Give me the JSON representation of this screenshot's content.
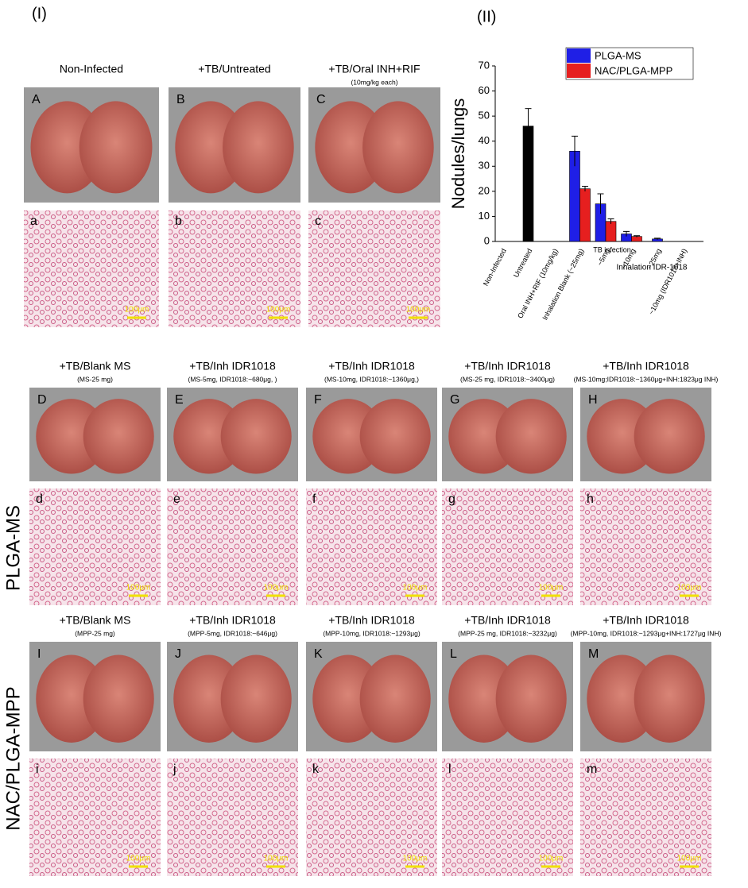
{
  "section_labels": [
    "(I)",
    "(II)"
  ],
  "scale_bar": "100μm",
  "top_row": {
    "panels": [
      {
        "title": "Non-Infected",
        "photo_label": "A",
        "histology_label": "a"
      },
      {
        "title": "+TB/Untreated",
        "photo_label": "B",
        "histology_label": "b"
      },
      {
        "title": "+TB/Oral INH+RIF",
        "subtitle": "(10mg/kg each)",
        "photo_label": "C",
        "histology_label": "c"
      }
    ]
  },
  "rows": [
    {
      "row_label": "PLGA-MS",
      "panels": [
        {
          "title": "+TB/Blank MS",
          "subtitle": "(MS-25 mg)",
          "photo_label": "D",
          "histology_label": "d"
        },
        {
          "title": "+TB/Inh IDR1018",
          "subtitle": "(MS-5mg, IDR1018:~680μg, )",
          "photo_label": "E",
          "histology_label": "e"
        },
        {
          "title": "+TB/Inh IDR1018",
          "subtitle": "(MS-10mg, IDR1018:~1360μg,)",
          "photo_label": "F",
          "histology_label": "f"
        },
        {
          "title": "+TB/Inh IDR1018",
          "subtitle": "(MS-25 mg, IDR1018:~3400μg)",
          "photo_label": "G",
          "histology_label": "g"
        },
        {
          "title": "+TB/Inh IDR1018",
          "subtitle": "(MS-10mg;IDR1018:~1360μg+INH:1823μg INH)",
          "photo_label": "H",
          "histology_label": "h"
        }
      ]
    },
    {
      "row_label": "NAC/PLGA-MPP",
      "panels": [
        {
          "title": "+TB/Blank MS",
          "subtitle": "(MPP-25 mg)",
          "photo_label": "I",
          "histology_label": "i"
        },
        {
          "title": "+TB/Inh IDR1018",
          "subtitle": "(MPP-5mg, IDR1018:~646μg)",
          "photo_label": "J",
          "histology_label": "j"
        },
        {
          "title": "+TB/Inh IDR1018",
          "subtitle": "(MPP-10mg, IDR1018:~1293μg)",
          "photo_label": "K",
          "histology_label": "k"
        },
        {
          "title": "+TB/Inh IDR1018",
          "subtitle": "(MPP-25 mg, IDR1018:~3232μg)",
          "photo_label": "L",
          "histology_label": "l"
        },
        {
          "title": "+TB/Inh IDR1018",
          "subtitle": "(MPP-10mg, IDR1018:~1293μg+INH:1727μg INH)",
          "photo_label": "M",
          "histology_label": "m"
        }
      ]
    }
  ],
  "chart_data": {
    "type": "bar",
    "y_label": "Nodules/lungs",
    "categories": [
      "Non-Infected",
      "Untreated",
      "Oral INH+RIF (10mg/kg)",
      "Inhalation Blank (~25mg)",
      "~5mg",
      "~10mg",
      "~25mg",
      "~10mg (IDR1018+INH)"
    ],
    "annotations": [
      "TB infection",
      "Inhalation IDR-1018"
    ],
    "series": [
      {
        "color": "#000000",
        "values": [
          null,
          46,
          null,
          null,
          null,
          null,
          null,
          null
        ],
        "errors": [
          null,
          7,
          null,
          null,
          null,
          null,
          null,
          null
        ]
      },
      {
        "name": "PLGA-MS",
        "color": "#1f1fe6",
        "values": [
          null,
          null,
          null,
          36,
          15,
          3,
          1,
          null
        ],
        "errors": [
          null,
          null,
          null,
          6,
          4,
          1,
          0.3,
          null
        ]
      },
      {
        "name": "NAC/PLGA-MPP",
        "color": "#e61f1f",
        "values": [
          null,
          null,
          null,
          21,
          8,
          2,
          null,
          null
        ],
        "errors": [
          null,
          null,
          null,
          1,
          1,
          0.3,
          null,
          null
        ]
      }
    ],
    "ylim": [
      0,
      70
    ],
    "yticks": [
      0,
      10,
      20,
      30,
      40,
      50,
      60,
      70
    ],
    "legend": "upper right"
  }
}
